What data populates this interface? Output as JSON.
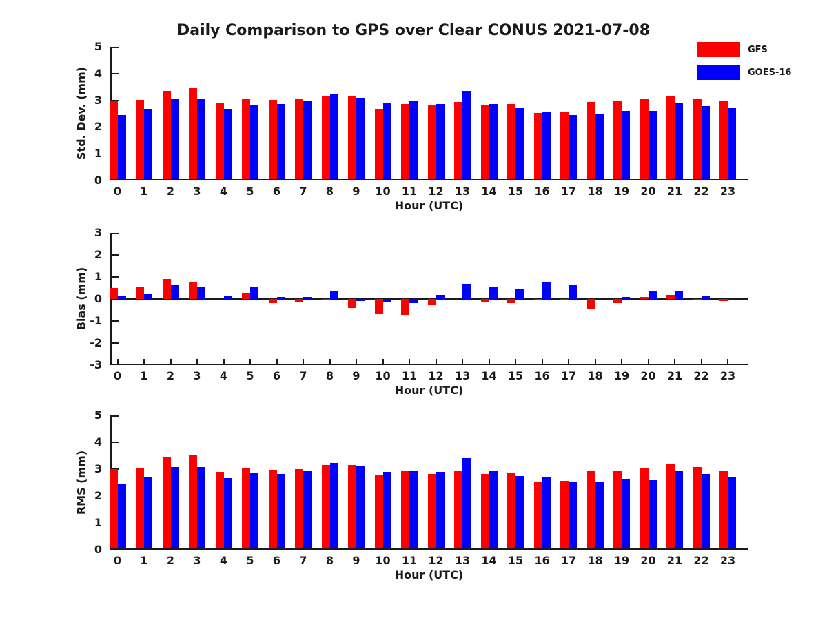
{
  "title": "Daily Comparison to GPS over Clear CONUS 2021-07-08",
  "legend": {
    "items": [
      {
        "label": "GFS",
        "color": "#ff0000"
      },
      {
        "label": "GOES-16",
        "color": "#0000ff"
      }
    ]
  },
  "colors": {
    "gfs": "#ff0000",
    "goes16": "#0000ff",
    "axis": "#1a1a1a"
  },
  "chart_data": [
    {
      "type": "bar",
      "panel": "std-dev",
      "categories": [
        "0",
        "1",
        "2",
        "3",
        "4",
        "5",
        "6",
        "7",
        "8",
        "9",
        "10",
        "11",
        "12",
        "13",
        "14",
        "15",
        "16",
        "17",
        "18",
        "19",
        "20",
        "21",
        "22",
        "23"
      ],
      "series": [
        {
          "name": "GFS",
          "color": "#ff0000",
          "values": [
            2.93,
            2.97,
            3.3,
            3.4,
            2.85,
            3.02,
            2.97,
            3.0,
            3.12,
            3.08,
            2.64,
            2.8,
            2.77,
            2.88,
            2.79,
            2.8,
            2.48,
            2.52,
            2.89,
            2.93,
            3.0,
            3.12,
            3.0,
            2.9
          ]
        },
        {
          "name": "GOES-16",
          "color": "#0000ff",
          "values": [
            2.4,
            2.63,
            3.0,
            2.99,
            2.63,
            2.77,
            2.8,
            2.93,
            3.2,
            3.04,
            2.85,
            2.92,
            2.82,
            3.29,
            2.82,
            2.65,
            2.51,
            2.39,
            2.46,
            2.56,
            2.54,
            2.87,
            2.74,
            2.66
          ]
        }
      ],
      "xlabel": "Hour (UTC)",
      "ylabel": "Std. Dev. (mm)",
      "ylim": [
        0,
        5
      ],
      "yticks": [
        0,
        1,
        2,
        3,
        4,
        5
      ],
      "grid": false,
      "legend_position": "top-right"
    },
    {
      "type": "bar",
      "panel": "bias",
      "categories": [
        "0",
        "1",
        "2",
        "3",
        "4",
        "5",
        "6",
        "7",
        "8",
        "9",
        "10",
        "11",
        "12",
        "13",
        "14",
        "15",
        "16",
        "17",
        "18",
        "19",
        "20",
        "21",
        "22",
        "23"
      ],
      "series": [
        {
          "name": "GFS",
          "color": "#ff0000",
          "values": [
            0.5,
            0.54,
            0.92,
            0.74,
            0.0,
            0.25,
            -0.2,
            -0.15,
            -0.04,
            -0.4,
            -0.7,
            -0.72,
            -0.28,
            0.0,
            -0.16,
            -0.2,
            -0.03,
            -0.03,
            -0.46,
            -0.18,
            0.09,
            0.19,
            -0.02,
            -0.08
          ]
        },
        {
          "name": "GOES-16",
          "color": "#0000ff",
          "values": [
            0.17,
            0.23,
            0.64,
            0.52,
            0.17,
            0.57,
            0.1,
            0.1,
            0.35,
            -0.1,
            -0.15,
            -0.2,
            0.2,
            0.7,
            0.52,
            0.48,
            0.78,
            0.64,
            0.0,
            0.08,
            0.33,
            0.34,
            0.17,
            -0.02
          ]
        }
      ],
      "xlabel": "Hour (UTC)",
      "ylabel": "Bias (mm)",
      "ylim": [
        -3,
        3
      ],
      "yticks": [
        -3,
        -2,
        -1,
        0,
        1,
        2,
        3
      ],
      "grid": false
    },
    {
      "type": "bar",
      "panel": "rms",
      "categories": [
        "0",
        "1",
        "2",
        "3",
        "4",
        "5",
        "6",
        "7",
        "8",
        "9",
        "10",
        "11",
        "12",
        "13",
        "14",
        "15",
        "16",
        "17",
        "18",
        "19",
        "20",
        "21",
        "22",
        "23"
      ],
      "series": [
        {
          "name": "GFS",
          "color": "#ff0000",
          "values": [
            2.94,
            2.98,
            3.4,
            3.45,
            2.85,
            2.98,
            2.93,
            2.96,
            3.11,
            3.09,
            2.72,
            2.87,
            2.78,
            2.87,
            2.78,
            2.8,
            2.5,
            2.52,
            2.91,
            2.91,
            3.0,
            3.14,
            3.02,
            2.89
          ]
        },
        {
          "name": "GOES-16",
          "color": "#0000ff",
          "values": [
            2.39,
            2.64,
            3.03,
            3.02,
            2.62,
            2.81,
            2.78,
            2.89,
            3.19,
            3.04,
            2.84,
            2.9,
            2.84,
            3.35,
            2.86,
            2.68,
            2.63,
            2.45,
            2.48,
            2.58,
            2.55,
            2.89,
            2.76,
            2.65
          ]
        }
      ],
      "xlabel": "Hour (UTC)",
      "ylabel": "RMS (mm)",
      "ylim": [
        0,
        5
      ],
      "yticks": [
        0,
        1,
        2,
        3,
        4,
        5
      ],
      "grid": false
    }
  ]
}
